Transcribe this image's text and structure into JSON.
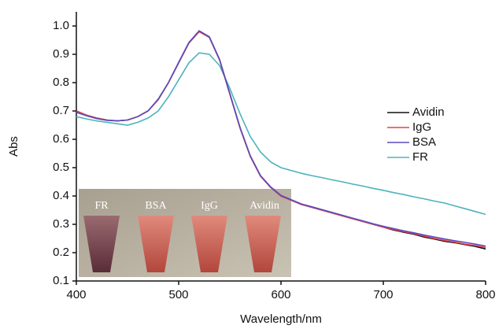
{
  "chart_data": {
    "type": "line",
    "x_label": "Wavelength/nm",
    "y_label": "Abs",
    "x": [
      400,
      410,
      420,
      430,
      440,
      450,
      460,
      470,
      480,
      490,
      500,
      510,
      520,
      530,
      540,
      550,
      560,
      570,
      580,
      590,
      600,
      610,
      620,
      630,
      640,
      650,
      660,
      670,
      680,
      690,
      700,
      710,
      720,
      730,
      740,
      750,
      760,
      770,
      780,
      790,
      800
    ],
    "series": [
      {
        "name": "Avidin",
        "color": "#111111",
        "values": [
          0.7,
          0.685,
          0.675,
          0.668,
          0.665,
          0.668,
          0.68,
          0.7,
          0.74,
          0.8,
          0.87,
          0.94,
          0.98,
          0.96,
          0.88,
          0.76,
          0.64,
          0.54,
          0.47,
          0.43,
          0.4,
          0.385,
          0.37,
          0.36,
          0.35,
          0.34,
          0.33,
          0.32,
          0.31,
          0.3,
          0.29,
          0.28,
          0.272,
          0.265,
          0.255,
          0.248,
          0.24,
          0.235,
          0.228,
          0.222,
          0.213
        ]
      },
      {
        "name": "IgG",
        "color": "#e8404a",
        "values": [
          0.7,
          0.685,
          0.675,
          0.668,
          0.665,
          0.668,
          0.68,
          0.7,
          0.74,
          0.8,
          0.87,
          0.94,
          0.98,
          0.96,
          0.88,
          0.76,
          0.64,
          0.54,
          0.47,
          0.43,
          0.4,
          0.385,
          0.37,
          0.36,
          0.35,
          0.34,
          0.33,
          0.32,
          0.31,
          0.3,
          0.29,
          0.282,
          0.274,
          0.267,
          0.258,
          0.25,
          0.243,
          0.237,
          0.23,
          0.225,
          0.218
        ]
      },
      {
        "name": "BSA",
        "color": "#5b4bbf",
        "values": [
          0.695,
          0.683,
          0.673,
          0.667,
          0.665,
          0.668,
          0.68,
          0.7,
          0.742,
          0.8,
          0.872,
          0.942,
          0.983,
          0.962,
          0.882,
          0.762,
          0.642,
          0.542,
          0.472,
          0.432,
          0.402,
          0.387,
          0.372,
          0.362,
          0.352,
          0.342,
          0.332,
          0.322,
          0.312,
          0.302,
          0.293,
          0.285,
          0.277,
          0.27,
          0.262,
          0.255,
          0.248,
          0.242,
          0.236,
          0.23,
          0.223
        ]
      },
      {
        "name": "FR",
        "color": "#4cb3bc",
        "values": [
          0.68,
          0.672,
          0.665,
          0.66,
          0.655,
          0.65,
          0.66,
          0.675,
          0.7,
          0.75,
          0.81,
          0.87,
          0.905,
          0.9,
          0.86,
          0.78,
          0.69,
          0.61,
          0.555,
          0.52,
          0.5,
          0.49,
          0.48,
          0.472,
          0.465,
          0.457,
          0.45,
          0.442,
          0.435,
          0.427,
          0.42,
          0.412,
          0.405,
          0.397,
          0.39,
          0.382,
          0.375,
          0.365,
          0.355,
          0.345,
          0.335
        ]
      }
    ],
    "xlim": [
      400,
      800
    ],
    "xticks": [
      400,
      500,
      600,
      700,
      800
    ],
    "ylim": [
      0.1,
      1.05
    ],
    "yticks": [
      0.1,
      0.2,
      0.3,
      0.4,
      0.5,
      0.6,
      0.7,
      0.8,
      0.9,
      {
        "value": 1,
        "label": "1.0"
      }
    ],
    "legend": "right",
    "inset_labels": [
      "FR",
      "BSA",
      "IgG",
      "Avidin"
    ]
  }
}
